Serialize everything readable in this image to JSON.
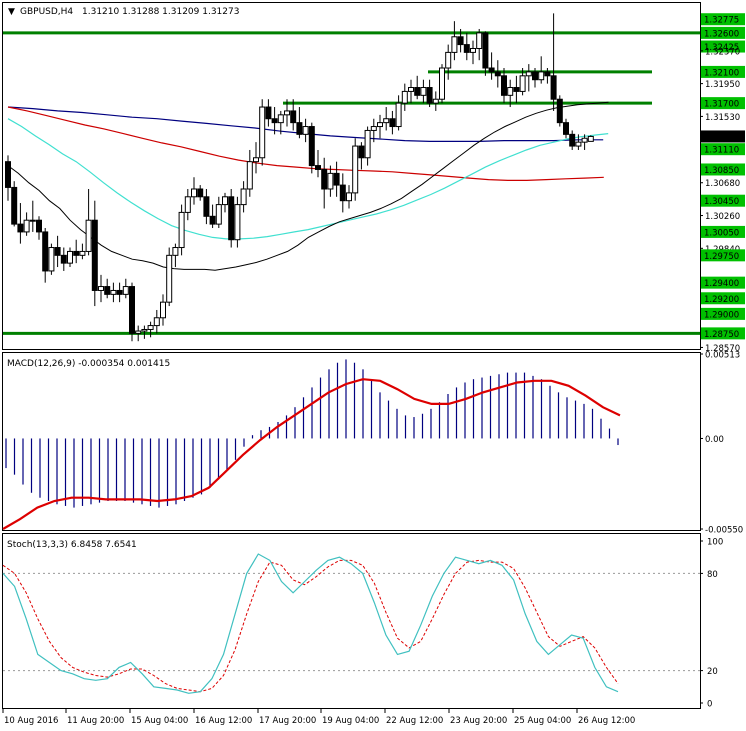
{
  "header": {
    "symbol_label": "GBPUSD,H4",
    "ohlc": "1.31210 1.31288 1.31209 1.31273",
    "macd_label": "MACD(12,26,9) -0.000354 0.001415",
    "stoch_label": "Stoch(13,3,3) 6.8458 7.6541"
  },
  "colors": {
    "candles": "#000000",
    "level_lines": "#008000",
    "level_tag_bg": "#00c000",
    "ma_fast": "#000000",
    "ma_mid": "#40e0d0",
    "ma_slow_red": "#cc0000",
    "ma_slow_blue": "#000080",
    "macd_hist": "#000080",
    "macd_signal": "#dd0000",
    "stoch_main": "#40c0c0",
    "stoch_signal": "#dd0000"
  },
  "chart_data": [
    {
      "type": "candlestick",
      "symbol": "GBPUSD",
      "timeframe": "H4",
      "price_axis_ticks": [
        "1.32775",
        "1.32600",
        "1.32425",
        "1.32370",
        "1.32100",
        "1.31950",
        "1.31700",
        "1.31530",
        "1.31273",
        "1.31110",
        "1.30850",
        "1.30680",
        "1.30450",
        "1.30260",
        "1.30050",
        "1.29840",
        "1.29750",
        "1.29400",
        "1.29200",
        "1.29000",
        "1.28750",
        "1.28570"
      ],
      "support_resistance_levels": [
        1.326,
        1.321,
        1.317,
        1.2875
      ],
      "tagged_levels": [
        "1.32775",
        "1.32600",
        "1.32425",
        "1.32100",
        "1.31700",
        "1.31110",
        "1.30850",
        "1.30450",
        "1.30050",
        "1.29750",
        "1.29400",
        "1.29200",
        "1.29000",
        "1.28750"
      ],
      "current_price": "1.31273",
      "ohlc": [
        [
          1.3095,
          1.3103,
          1.3045,
          1.3062
        ],
        [
          1.3062,
          1.307,
          1.3012,
          1.3015
        ],
        [
          1.3015,
          1.3042,
          1.299,
          1.3005
        ],
        [
          1.3005,
          1.303,
          1.3,
          1.302
        ],
        [
          1.302,
          1.3045,
          1.3005,
          1.302
        ],
        [
          1.302,
          1.3025,
          1.2995,
          1.3005
        ],
        [
          1.3005,
          1.301,
          1.294,
          1.2955
        ],
        [
          1.2955,
          1.299,
          1.295,
          1.2985
        ],
        [
          1.2985,
          1.3,
          1.296,
          1.2975
        ],
        [
          1.2975,
          1.2985,
          1.2955,
          1.2965
        ],
        [
          1.2965,
          1.2985,
          1.296,
          1.298
        ],
        [
          1.298,
          1.2995,
          1.2965,
          1.2975
        ],
        [
          1.2975,
          1.299,
          1.297,
          1.298
        ],
        [
          1.298,
          1.306,
          1.2975,
          1.302
        ],
        [
          1.302,
          1.3045,
          1.291,
          1.293
        ],
        [
          1.293,
          1.295,
          1.2915,
          1.2935
        ],
        [
          1.2935,
          1.2945,
          1.292,
          1.2925
        ],
        [
          1.2925,
          1.294,
          1.2915,
          1.293
        ],
        [
          1.293,
          1.294,
          1.2915,
          1.2925
        ],
        [
          1.2925,
          1.2945,
          1.292,
          1.2935
        ],
        [
          1.2935,
          1.294,
          1.2865,
          1.2875
        ],
        [
          1.2875,
          1.2885,
          1.2865,
          1.2878
        ],
        [
          1.2878,
          1.2885,
          1.2868,
          1.288
        ],
        [
          1.288,
          1.289,
          1.287,
          1.2885
        ],
        [
          1.2885,
          1.2905,
          1.2875,
          1.2895
        ],
        [
          1.2895,
          1.2925,
          1.2885,
          1.2915
        ],
        [
          1.2915,
          1.2985,
          1.291,
          1.2975
        ],
        [
          1.2975,
          1.299,
          1.296,
          1.2985
        ],
        [
          1.2985,
          1.304,
          1.2975,
          1.303
        ],
        [
          1.303,
          1.306,
          1.302,
          1.305
        ],
        [
          1.305,
          1.3075,
          1.304,
          1.306
        ],
        [
          1.306,
          1.3065,
          1.3045,
          1.305
        ],
        [
          1.305,
          1.306,
          1.3015,
          1.3025
        ],
        [
          1.3025,
          1.304,
          1.301,
          1.3015
        ],
        [
          1.3015,
          1.305,
          1.301,
          1.304
        ],
        [
          1.304,
          1.3055,
          1.303,
          1.305
        ],
        [
          1.305,
          1.306,
          1.2985,
          1.2995
        ],
        [
          1.2995,
          1.305,
          1.2985,
          1.304
        ],
        [
          1.304,
          1.307,
          1.303,
          1.306
        ],
        [
          1.306,
          1.311,
          1.305,
          1.3095
        ],
        [
          1.3095,
          1.312,
          1.308,
          1.31
        ],
        [
          1.31,
          1.3175,
          1.309,
          1.3165
        ],
        [
          1.3165,
          1.3175,
          1.314,
          1.315
        ],
        [
          1.315,
          1.3165,
          1.313,
          1.3145
        ],
        [
          1.3145,
          1.316,
          1.313,
          1.3155
        ],
        [
          1.3155,
          1.3175,
          1.314,
          1.316
        ],
        [
          1.316,
          1.3175,
          1.3135,
          1.3145
        ],
        [
          1.3145,
          1.3165,
          1.3125,
          1.313
        ],
        [
          1.313,
          1.315,
          1.312,
          1.314
        ],
        [
          1.314,
          1.3145,
          1.308,
          1.309
        ],
        [
          1.309,
          1.311,
          1.3075,
          1.3085
        ],
        [
          1.3085,
          1.31,
          1.3035,
          1.306
        ],
        [
          1.306,
          1.309,
          1.305,
          1.308
        ],
        [
          1.308,
          1.3095,
          1.305,
          1.3065
        ],
        [
          1.3065,
          1.308,
          1.303,
          1.3045
        ],
        [
          1.3045,
          1.3065,
          1.3035,
          1.3055
        ],
        [
          1.3055,
          1.3125,
          1.3045,
          1.3115
        ],
        [
          1.3115,
          1.312,
          1.3085,
          1.31
        ],
        [
          1.31,
          1.314,
          1.309,
          1.3135
        ],
        [
          1.3135,
          1.315,
          1.312,
          1.314
        ],
        [
          1.314,
          1.3155,
          1.3125,
          1.3145
        ],
        [
          1.3145,
          1.3165,
          1.3135,
          1.315
        ],
        [
          1.315,
          1.316,
          1.313,
          1.314
        ],
        [
          1.314,
          1.318,
          1.3135,
          1.317
        ],
        [
          1.317,
          1.3195,
          1.316,
          1.3185
        ],
        [
          1.3185,
          1.32,
          1.317,
          1.319
        ],
        [
          1.319,
          1.3205,
          1.3175,
          1.318
        ],
        [
          1.318,
          1.32,
          1.317,
          1.319
        ],
        [
          1.319,
          1.32,
          1.3165,
          1.317
        ],
        [
          1.317,
          1.3185,
          1.316,
          1.3175
        ],
        [
          1.3175,
          1.322,
          1.317,
          1.3215
        ],
        [
          1.3215,
          1.3245,
          1.32,
          1.3235
        ],
        [
          1.3235,
          1.3275,
          1.3225,
          1.3255
        ],
        [
          1.3255,
          1.3265,
          1.3235,
          1.3245
        ],
        [
          1.3245,
          1.326,
          1.3225,
          1.3235
        ],
        [
          1.3235,
          1.325,
          1.322,
          1.324
        ],
        [
          1.324,
          1.3265,
          1.3225,
          1.326
        ],
        [
          1.326,
          1.3262,
          1.3205,
          1.3215
        ],
        [
          1.3215,
          1.3235,
          1.32,
          1.321
        ],
        [
          1.321,
          1.3225,
          1.319,
          1.3205
        ],
        [
          1.3205,
          1.3215,
          1.317,
          1.318
        ],
        [
          1.318,
          1.32,
          1.3165,
          1.319
        ],
        [
          1.319,
          1.3205,
          1.317,
          1.3185
        ],
        [
          1.3185,
          1.3215,
          1.318,
          1.3205
        ],
        [
          1.3205,
          1.322,
          1.3185,
          1.321
        ],
        [
          1.321,
          1.3215,
          1.319,
          1.32
        ],
        [
          1.32,
          1.323,
          1.3195,
          1.321
        ],
        [
          1.321,
          1.3215,
          1.3195,
          1.3205
        ],
        [
          1.3205,
          1.3285,
          1.316,
          1.3175
        ],
        [
          1.3175,
          1.318,
          1.314,
          1.3145
        ],
        [
          1.3145,
          1.315,
          1.3125,
          1.313
        ],
        [
          1.313,
          1.3135,
          1.311,
          1.3115
        ],
        [
          1.3115,
          1.313,
          1.311,
          1.312
        ],
        [
          1.312,
          1.313,
          1.311,
          1.3125
        ],
        [
          1.3121,
          1.31288,
          1.31209,
          1.31273
        ]
      ],
      "ma_fast_black": [
        1.309,
        1.308,
        1.3068,
        1.3058,
        1.3045,
        1.3035,
        1.302,
        1.3008,
        1.2998,
        1.2988,
        1.298,
        1.2975,
        1.297,
        1.2968,
        1.2965,
        1.296,
        1.2958,
        1.2957,
        1.2957,
        1.2957,
        1.2956,
        1.2958,
        1.296,
        1.2963,
        1.2966,
        1.297,
        1.2975,
        1.298,
        1.2988,
        1.2998,
        1.3005,
        1.3012,
        1.3018,
        1.3022,
        1.3026,
        1.303,
        1.3035,
        1.3041,
        1.3048,
        1.3057,
        1.3066,
        1.3076,
        1.3086,
        1.3096,
        1.3106,
        1.3116,
        1.3125,
        1.3133,
        1.314,
        1.3146,
        1.3152,
        1.3157,
        1.3161,
        1.3164,
        1.3166,
        1.3168,
        1.3169,
        1.317,
        1.3171
      ],
      "ma_mid_turquoise": [
        1.315,
        1.314,
        1.3128,
        1.3117,
        1.3105,
        1.3095,
        1.3082,
        1.3068,
        1.3055,
        1.3043,
        1.3032,
        1.3022,
        1.3013,
        1.3007,
        1.3002,
        1.2998,
        1.2996,
        1.2996,
        1.2997,
        1.2999,
        1.3002,
        1.3005,
        1.3008,
        1.3012,
        1.3016,
        1.302,
        1.3024,
        1.3028,
        1.3033,
        1.3039,
        1.3046,
        1.3053,
        1.3061,
        1.307,
        1.3079,
        1.3088,
        1.3096,
        1.3103,
        1.311,
        1.3116,
        1.312,
        1.3124,
        1.3127,
        1.3129,
        1.3131
      ],
      "ma_slow_red": [
        1.3165,
        1.316,
        1.3154,
        1.3148,
        1.3142,
        1.3137,
        1.3131,
        1.3125,
        1.3119,
        1.3114,
        1.3108,
        1.3102,
        1.3097,
        1.3093,
        1.309,
        1.3088,
        1.3086,
        1.3085,
        1.3084,
        1.3083,
        1.3082,
        1.308,
        1.3078,
        1.3076,
        1.3074,
        1.3072,
        1.3071,
        1.3071,
        1.3072,
        1.3073,
        1.3074,
        1.3075
      ],
      "ma_slow_blue": [
        1.3165,
        1.3163,
        1.316,
        1.3158,
        1.3155,
        1.3152,
        1.315,
        1.3147,
        1.3144,
        1.3141,
        1.3138,
        1.3134,
        1.3131,
        1.3128,
        1.3126,
        1.3124,
        1.3122,
        1.3121,
        1.3121,
        1.3121,
        1.3122,
        1.3122,
        1.3122,
        1.3123,
        1.3123
      ]
    },
    {
      "type": "bar",
      "name": "MACD(12,26,9)",
      "y_axis_ticks": [
        "0.00513",
        "0.00",
        "-0.00550"
      ],
      "ylim": [
        -0.0055,
        0.00513
      ],
      "histogram": [
        -0.0018,
        -0.0022,
        -0.0028,
        -0.0033,
        -0.0036,
        -0.0038,
        -0.004,
        -0.0041,
        -0.0042,
        -0.0041,
        -0.004,
        -0.0039,
        -0.0038,
        -0.0038,
        -0.0038,
        -0.0039,
        -0.004,
        -0.0041,
        -0.0042,
        -0.0041,
        -0.004,
        -0.0038,
        -0.0036,
        -0.0034,
        -0.003,
        -0.0025,
        -0.0019,
        -0.0013,
        -0.0005,
        0.0002,
        0.0005,
        0.0007,
        0.001,
        0.0014,
        0.0019,
        0.0025,
        0.0031,
        0.0037,
        0.0042,
        0.0046,
        0.0048,
        0.0046,
        0.0042,
        0.0035,
        0.0028,
        0.0023,
        0.0018,
        0.0014,
        0.0013,
        0.0015,
        0.0018,
        0.0022,
        0.0027,
        0.0031,
        0.0034,
        0.0036,
        0.0037,
        0.0038,
        0.0039,
        0.004,
        0.004,
        0.004,
        0.0038,
        0.0036,
        0.0032,
        0.0028,
        0.0025,
        0.0023,
        0.0021,
        0.0018,
        0.0012,
        0.0006,
        -0.0004
      ],
      "signal": [
        -0.0055,
        -0.0049,
        -0.0042,
        -0.0038,
        -0.0036,
        -0.0036,
        -0.0037,
        -0.0037,
        -0.0037,
        -0.0038,
        -0.0037,
        -0.0035,
        -0.003,
        -0.002,
        -0.001,
        -0.0001,
        0.0007,
        0.0014,
        0.0021,
        0.0028,
        0.0033,
        0.0036,
        0.0035,
        0.003,
        0.0024,
        0.0021,
        0.0021,
        0.0024,
        0.0028,
        0.0031,
        0.0034,
        0.0035,
        0.0035,
        0.0032,
        0.0026,
        0.0019,
        0.0014
      ]
    },
    {
      "type": "line",
      "name": "Stoch(13,3,3)",
      "y_axis_ticks": [
        "100",
        "80",
        "20",
        "0"
      ],
      "ylim": [
        0,
        100
      ],
      "main": [
        80,
        72,
        52,
        30,
        25,
        20,
        18,
        15,
        14,
        15,
        22,
        25,
        18,
        10,
        9,
        8,
        6,
        7,
        15,
        30,
        55,
        80,
        92,
        88,
        75,
        68,
        75,
        82,
        88,
        90,
        86,
        80,
        62,
        42,
        30,
        32,
        48,
        66,
        80,
        90,
        88,
        86,
        88,
        85,
        76,
        55,
        38,
        30,
        36,
        42,
        40,
        22,
        10,
        7
      ],
      "signal": [
        85,
        80,
        68,
        52,
        38,
        28,
        22,
        19,
        17,
        16,
        18,
        21,
        21,
        17,
        12,
        9,
        8,
        7,
        9,
        17,
        33,
        55,
        75,
        87,
        85,
        76,
        73,
        78,
        84,
        88,
        88,
        85,
        74,
        56,
        40,
        34,
        38,
        52,
        67,
        80,
        87,
        88,
        87,
        87,
        83,
        71,
        56,
        41,
        35,
        38,
        41,
        34,
        22,
        12
      ]
    }
  ],
  "time_axis_labels": [
    "10 Aug 2016",
    "11 Aug 20:00",
    "15 Aug 04:00",
    "16 Aug 12:00",
    "17 Aug 20:00",
    "19 Aug 04:00",
    "22 Aug 12:00",
    "23 Aug 20:00",
    "25 Aug 04:00",
    "26 Aug 12:00"
  ]
}
